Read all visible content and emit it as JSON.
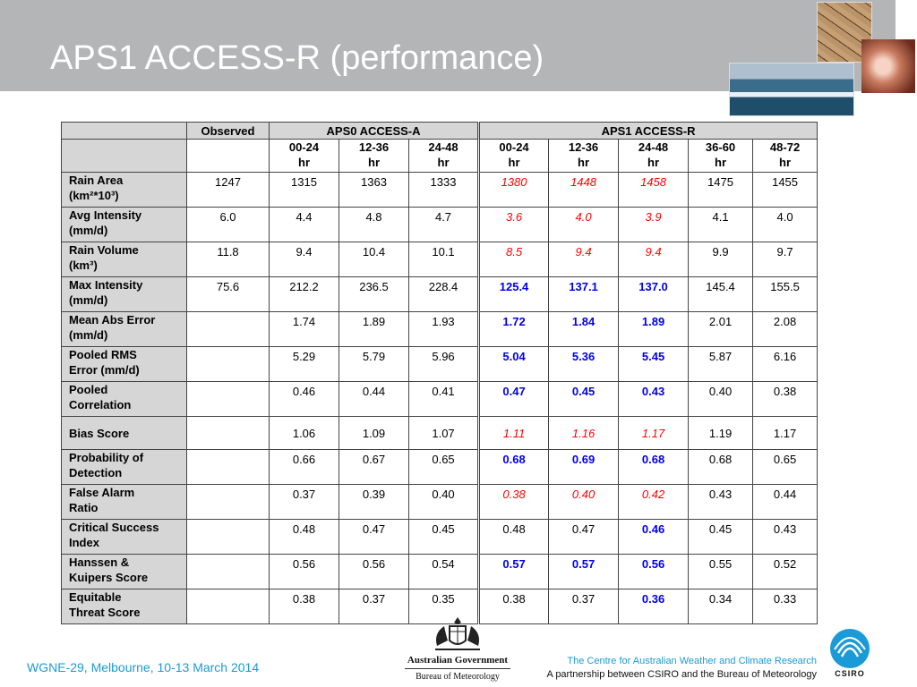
{
  "title": "APS1 ACCESS-R (performance)",
  "table": {
    "observed_label": "Observed",
    "group_a": "APS0 ACCESS-A",
    "group_r": "APS1 ACCESS-R",
    "periods": [
      {
        "range": "00-24",
        "unit": "hr"
      },
      {
        "range": "12-36",
        "unit": "hr"
      },
      {
        "range": "24-48",
        "unit": "hr"
      },
      {
        "range": "00-24",
        "unit": "hr"
      },
      {
        "range": "12-36",
        "unit": "hr"
      },
      {
        "range": "24-48",
        "unit": "hr"
      },
      {
        "range": "36-60",
        "unit": "hr"
      },
      {
        "range": "48-72",
        "unit": "hr"
      }
    ],
    "rows": [
      {
        "l1": "Rain Area",
        "l2": "(km²*10³)",
        "obs": "1247",
        "a": [
          "1315",
          "1363",
          "1333"
        ],
        "r": [
          "1380",
          "1448",
          "1458",
          "1475",
          "1455"
        ],
        "style": "red"
      },
      {
        "l1": "Avg Intensity",
        "l2": "(mm/d)",
        "obs": "6.0",
        "a": [
          "4.4",
          "4.8",
          "4.7"
        ],
        "r": [
          "3.6",
          "4.0",
          "3.9",
          "4.1",
          "4.0"
        ],
        "style": "red"
      },
      {
        "l1": "Rain Volume",
        "l2": "(km³)",
        "obs": "11.8",
        "a": [
          "9.4",
          "10.4",
          "10.1"
        ],
        "r": [
          "8.5",
          "9.4",
          "9.4",
          "9.9",
          "9.7"
        ],
        "style": "red"
      },
      {
        "l1": "Max Intensity",
        "l2": "(mm/d)",
        "obs": "75.6",
        "a": [
          "212.2",
          "236.5",
          "228.4"
        ],
        "r": [
          "125.4",
          "137.1",
          "137.0",
          "145.4",
          "155.5"
        ],
        "style": "blue"
      },
      {
        "l1": "Mean Abs Error",
        "l2": "(mm/d)",
        "obs": "",
        "a": [
          "1.74",
          "1.89",
          "1.93"
        ],
        "r": [
          "1.72",
          "1.84",
          "1.89",
          "2.01",
          "2.08"
        ],
        "style": "blue"
      },
      {
        "l1": "Pooled RMS",
        "l2": "Error (mm/d)",
        "obs": "",
        "a": [
          "5.29",
          "5.79",
          "5.96"
        ],
        "r": [
          "5.04",
          "5.36",
          "5.45",
          "5.87",
          "6.16"
        ],
        "style": "blue"
      },
      {
        "l1": "Pooled",
        "l2": "Correlation",
        "obs": "",
        "a": [
          "0.46",
          "0.44",
          "0.41"
        ],
        "r": [
          "0.47",
          "0.45",
          "0.43",
          "0.40",
          "0.38"
        ],
        "style": "blue"
      },
      {
        "l1": "Bias Score",
        "l2": "",
        "obs": "",
        "a": [
          "1.06",
          "1.09",
          "1.07"
        ],
        "r": [
          "1.11",
          "1.16",
          "1.17",
          "1.19",
          "1.17"
        ],
        "style": "red"
      },
      {
        "l1": "Probability of",
        "l2": "Detection",
        "obs": "",
        "a": [
          "0.66",
          "0.67",
          "0.65"
        ],
        "r": [
          "0.68",
          "0.69",
          "0.68",
          "0.68",
          "0.65"
        ],
        "style": "blue"
      },
      {
        "l1": "False Alarm",
        "l2": "Ratio",
        "obs": "",
        "a": [
          "0.37",
          "0.39",
          "0.40"
        ],
        "r": [
          "0.38",
          "0.40",
          "0.42",
          "0.43",
          "0.44"
        ],
        "style": "red"
      },
      {
        "l1": "Critical Success",
        "l2": "Index",
        "obs": "",
        "a": [
          "0.48",
          "0.47",
          "0.45"
        ],
        "r": [
          "0.48",
          "0.47",
          "0.46",
          "0.45",
          "0.43"
        ],
        "style": "blue3"
      },
      {
        "l1": "Hanssen &",
        "l2": "Kuipers Score",
        "obs": "",
        "a": [
          "0.56",
          "0.56",
          "0.54"
        ],
        "r": [
          "0.57",
          "0.57",
          "0.56",
          "0.55",
          "0.52"
        ],
        "style": "blue"
      },
      {
        "l1": "Equitable",
        "l2": "Threat Score",
        "obs": "",
        "a": [
          "0.38",
          "0.37",
          "0.35"
        ],
        "r": [
          "0.38",
          "0.37",
          "0.36",
          "0.34",
          "0.33"
        ],
        "style": "blue3"
      }
    ]
  },
  "footer": {
    "event": "WGNE-29, Melbourne, 10-13 March 2014",
    "gov_line1": "Australian Government",
    "gov_line2": "Bureau of Meteorology",
    "centre_line1": "The Centre for Australian Weather and Climate Research",
    "centre_line2": "A partnership between CSIRO and the Bureau of Meteorology",
    "csiro": "CSIRO"
  },
  "colors": {
    "title_bar": "#b3b5b6",
    "highlight_red": "#ff0000",
    "highlight_blue": "#0000ee",
    "footer_blue": "#1a9bd7"
  },
  "icons": [
    "cracked-earth-photo",
    "sunset-cloud-photo",
    "ocean-wave-photo",
    "coat-of-arms-icon",
    "csiro-logo-icon"
  ]
}
